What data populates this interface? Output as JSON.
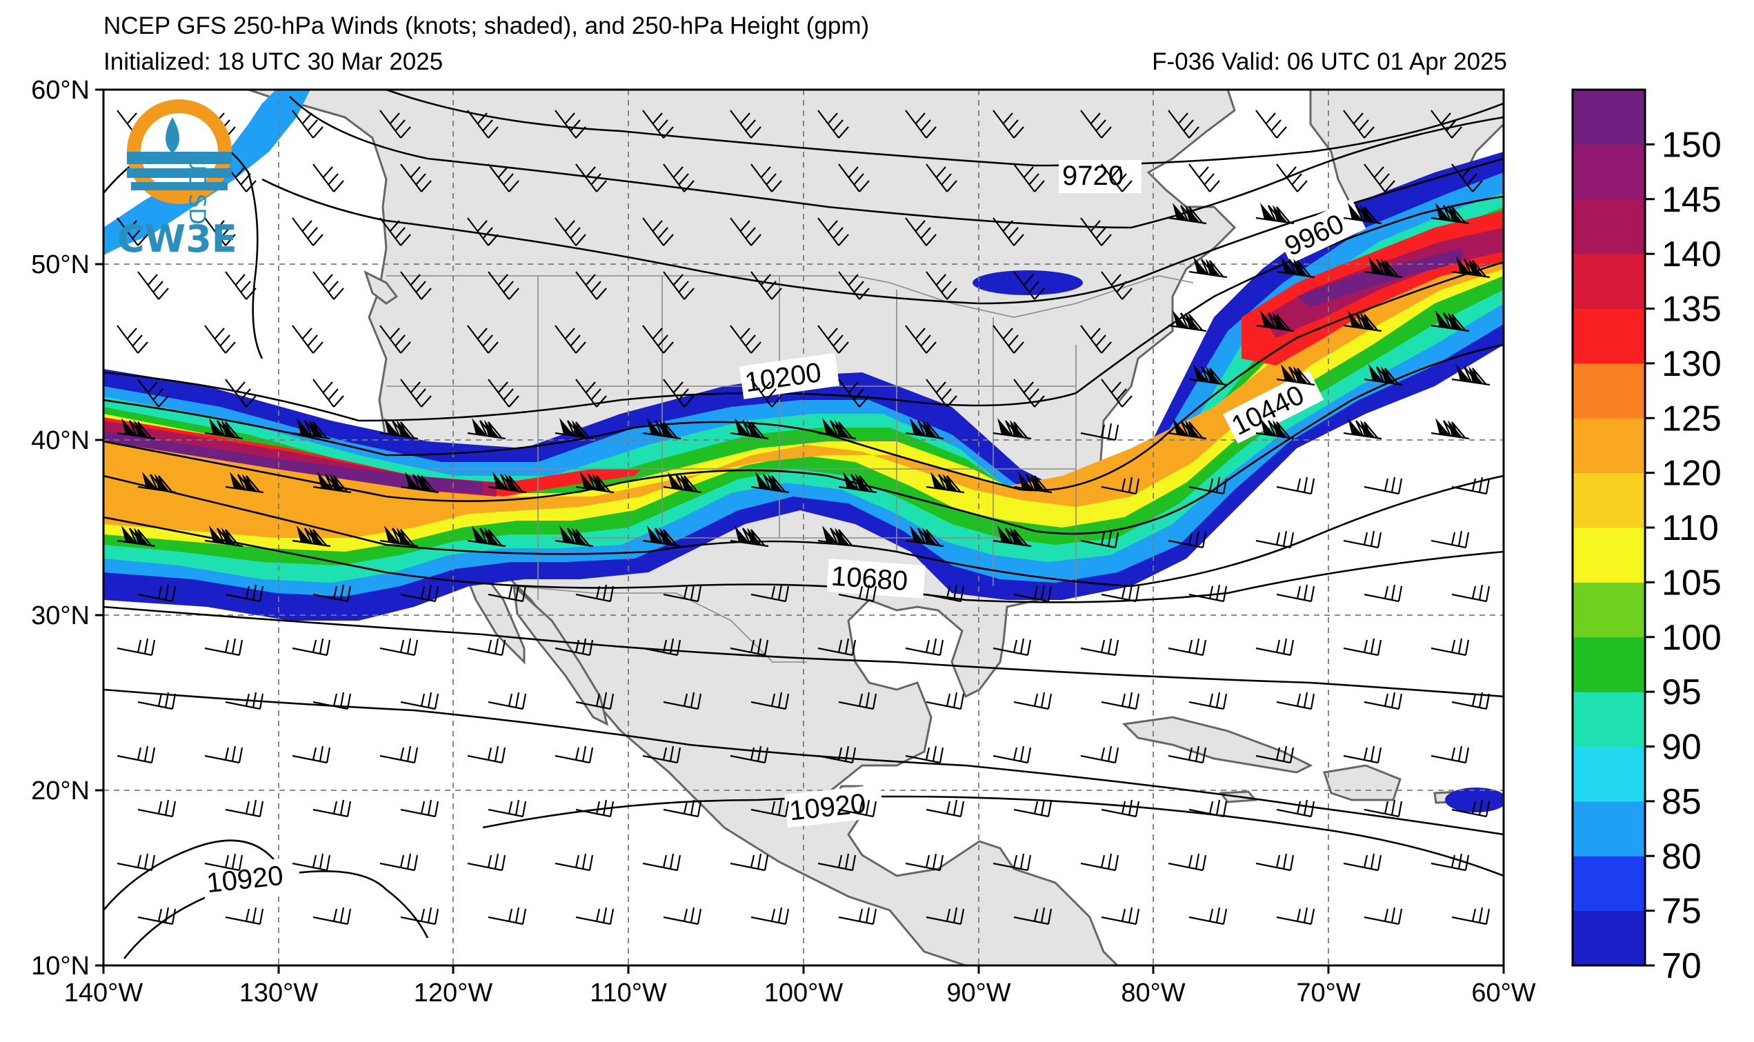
{
  "title": {
    "line1": "NCEP GFS 250-hPa Winds (knots; shaded), and 250-hPa Height (gpm)",
    "line2": "Initialized: 18 UTC 30 Mar 2025",
    "valid": "F-036  Valid: 06 UTC 01 Apr 2025"
  },
  "logo": {
    "text": "CW3E",
    "badge_text": "UC SD",
    "name": "cw3e-logo"
  },
  "map": {
    "region": {
      "lon_min": -140,
      "lon_max": -60,
      "lat_min": 10,
      "lat_max": 60
    },
    "lat_ticks": [
      "10°N",
      "20°N",
      "30°N",
      "40°N",
      "50°N",
      "60°N"
    ],
    "lon_ticks": [
      "140°W",
      "130°W",
      "120°W",
      "110°W",
      "100°W",
      "90°W",
      "80°W",
      "70°W",
      "60°W"
    ],
    "land_color": "#e3e3e3",
    "coast_color": "#666666"
  },
  "contours": {
    "levels": [
      {
        "value": 9720,
        "label": "9720"
      },
      {
        "value": 9960,
        "label": "9960"
      },
      {
        "value": 10200,
        "label": "10200"
      },
      {
        "value": 10440,
        "label": "10440"
      },
      {
        "value": 10680,
        "label": "10680"
      },
      {
        "value": 10920,
        "label": "10920"
      },
      {
        "value": 10920,
        "label": "10920"
      }
    ]
  },
  "colorbar": {
    "thresholds": [
      70,
      75,
      80,
      85,
      90,
      95,
      100,
      105,
      110,
      120,
      125,
      130,
      135,
      140,
      145,
      150,
      155
    ],
    "colors": [
      "#1a1fc8",
      "#1b3ff0",
      "#1fa0f5",
      "#22d8f0",
      "#1ee0b0",
      "#20c024",
      "#70d020",
      "#f5f520",
      "#f8d020",
      "#f8a820",
      "#f88020",
      "#f82020",
      "#d81838",
      "#a81858",
      "#901870",
      "#702080"
    ],
    "labels": [
      "70",
      "75",
      "80",
      "85",
      "90",
      "95",
      "100",
      "105",
      "110",
      "120",
      "125",
      "130",
      "135",
      "140",
      "145",
      "150"
    ]
  },
  "chart_data": {
    "type": "map",
    "fields": [
      {
        "name": "250-hPa Winds",
        "units": "knots",
        "style": "shaded + barbs"
      },
      {
        "name": "250-hPa Height",
        "units": "gpm",
        "style": "contours"
      }
    ],
    "contour_values_labeled": [
      9720,
      9960,
      10200,
      10440,
      10680,
      10920
    ],
    "jet_max_knots": 150
  }
}
